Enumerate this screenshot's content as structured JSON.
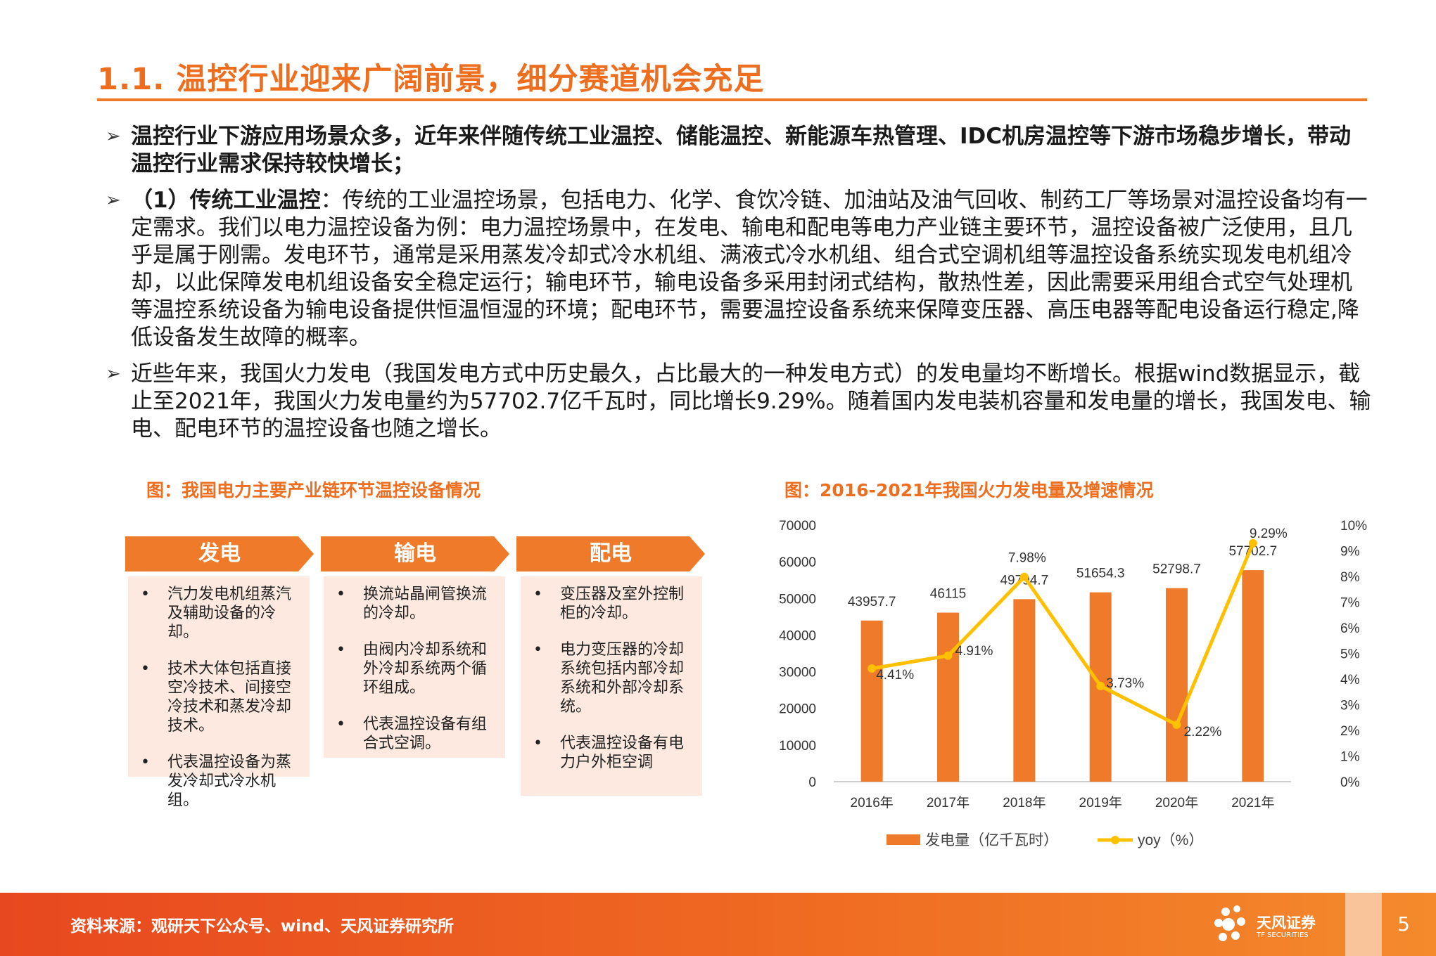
{
  "title": "1.1. 温控行业迎来广阔前景，细分赛道机会充足",
  "bullets": [
    {
      "text": "温控行业下游应用场景众多，近年来伴随传统工业温控、储能温控、新能源车热管理、IDC机房温控等下游市场稳步增长，带动温控行业需求保持较快增长；"
    },
    {
      "lead": "（1）传统工业温控",
      "text": "：传统的工业温控场景，包括电力、化学、食饮冷链、加油站及油气回收、制药工厂等场景对温控设备均有一定需求。我们以电力温控设备为例：电力温控场景中，在发电、输电和配电等电力产业链主要环节，温控设备被广泛使用，且几乎是属于刚需。发电环节，通常是采用蒸发冷却式冷水机组、满液式冷水机组、组合式空调机组等温控设备系统实现发电机组冷却，以此保障发电机组设备安全稳定运行；输电环节，输电设备多采用封闭式结构，散热性差，因此需要采用组合式空气处理机等温控系统设备为输电设备提供恒温恒湿的环境；配电环节，需要温控设备系统来保障变压器、高压电器等配电设备运行稳定,降低设备发生故障的概率。"
    },
    {
      "text": "近些年来，我国火力发电（我国发电方式中历史最久，占比最大的一种发电方式）的发电量均不断增长。根据wind数据显示，截止至2021年，我国火力发电量约为57702.7亿千瓦时，同比增长9.29%。随着国内发电装机容量和发电量的增长，我国发电、输电、配电环节的温控设备也随之增长。"
    }
  ],
  "left_figure": {
    "caption": "图：我国电力主要产业链环节温控设备情况",
    "columns": [
      {
        "header": "发电",
        "items": [
          "汽力发电机组蒸汽及辅助设备的冷却。",
          "技术大体包括直接空冷技术、间接空冷技术和蒸发冷却技术。",
          "代表温控设备为蒸发冷却式冷水机组。"
        ]
      },
      {
        "header": "输电",
        "items": [
          "换流站晶闸管换流的冷却。",
          "由阀内冷却系统和外冷却系统两个循环组成。",
          "代表温控设备有组合式空调。"
        ]
      },
      {
        "header": "配电",
        "items": [
          "变压器及室外控制柜的冷却。",
          "电力变压器的冷却系统包括内部冷却系统和外部冷却系统。",
          "代表温控设备有电力户外柜空调"
        ]
      }
    ]
  },
  "right_figure": {
    "caption": "图：2016-2021年我国火力发电量及增速情况"
  },
  "chart_data": {
    "type": "bar",
    "title": "图：2016-2021年我国火力发电量及增速情况",
    "categories": [
      "2016年",
      "2017年",
      "2018年",
      "2019年",
      "2020年",
      "2021年"
    ],
    "series": [
      {
        "name": "发电量（亿千瓦时）",
        "type": "bar",
        "axis": "left",
        "values": [
          43957.7,
          46115,
          49794.7,
          51654.3,
          52798.7,
          57702.7
        ],
        "labels": [
          "43957.7",
          "46115",
          "49794.7",
          "51654.3",
          "52798.7",
          "57702.7"
        ]
      },
      {
        "name": "yoy（%）",
        "type": "line",
        "axis": "right",
        "values": [
          4.41,
          4.91,
          7.98,
          3.73,
          2.22,
          9.29
        ],
        "labels": [
          "4.41%",
          "4.91%",
          "7.98%",
          "3.73%",
          "2.22%",
          "9.29%"
        ]
      }
    ],
    "ylim_left": [
      0,
      70000
    ],
    "yticks_left": [
      "0",
      "10000",
      "20000",
      "30000",
      "40000",
      "50000",
      "60000",
      "70000"
    ],
    "ylim_right": [
      0,
      10
    ],
    "yticks_right": [
      "0%",
      "1%",
      "2%",
      "3%",
      "4%",
      "5%",
      "6%",
      "7%",
      "8%",
      "9%",
      "10%"
    ],
    "legend_position": "bottom",
    "colors": {
      "bar": "#ee7a2a",
      "line": "#ffc000"
    }
  },
  "footer": {
    "source": "资料来源：观研天下公众号、wind、天风证券研究所",
    "logo_cn": "天风证券",
    "logo_en": "TF SECURITIES",
    "page_number": "5"
  },
  "colors": {
    "accent": "#ee7a2a",
    "title": "#ee6e1f",
    "box_bg": "#fde9df"
  }
}
